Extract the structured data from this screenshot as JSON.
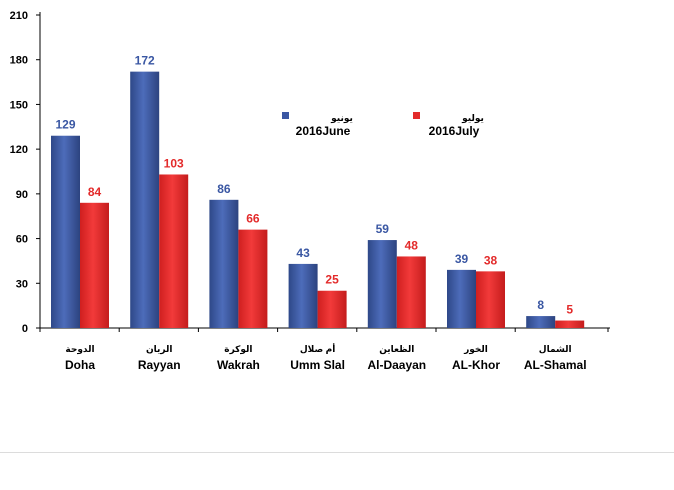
{
  "chart_data": {
    "type": "bar",
    "categories": [
      "Doha",
      "Rayyan",
      "Wakrah",
      "Umm Slal",
      "Al-Daayan",
      "AL-Khor",
      "AL-Shamal"
    ],
    "categories_ar": [
      "الدوحة",
      "الريان",
      "الوكرة",
      "أم صلال",
      "الظعاين",
      "الخور",
      "الشمال"
    ],
    "series": [
      {
        "name": "2016June",
        "name_ar": "يونيو",
        "values": [
          129,
          172,
          86,
          43,
          59,
          39,
          8
        ]
      },
      {
        "name": "2016July",
        "name_ar": "يوليو",
        "values": [
          84,
          103,
          66,
          25,
          48,
          38,
          5
        ]
      }
    ],
    "ylim": [
      0,
      210
    ],
    "yticks": [
      0,
      30,
      60,
      90,
      120,
      150,
      180,
      210
    ],
    "grid": false,
    "legend": "inside-top-right",
    "colors": {
      "series": [
        "#3a57a3",
        "#e32b2b"
      ],
      "labels": [
        "#3a57a3",
        "#e32b2b"
      ],
      "axis": "#000000"
    }
  }
}
